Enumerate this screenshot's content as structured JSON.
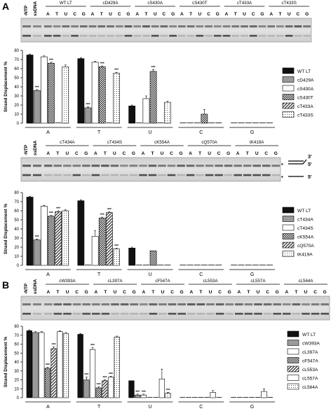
{
  "panel_labels": [
    "A",
    "B"
  ],
  "ylabel": "Strand Displacement %",
  "lanes_prefix": [
    "-NTP",
    "ssDNA"
  ],
  "nucleotides": [
    "A",
    "T",
    "U",
    "C",
    "G"
  ],
  "substrate_labels": {
    "top": "3'",
    "mid": "5'",
    "bottom": "5'",
    "star": "*"
  },
  "colors": {
    "black": "#111111",
    "grey": "#9a9a9a",
    "white": "#ffffff"
  },
  "chart_data": [
    {
      "type": "bar",
      "categories": [
        "A",
        "T",
        "U",
        "C",
        "G"
      ],
      "ylabel": "Strand Displacement %",
      "ylim": [
        0,
        80
      ],
      "yticks": [
        0,
        10,
        20,
        30,
        40,
        50,
        60,
        70,
        80
      ],
      "gel_groups": [
        "WT LT",
        "cD429A",
        "cS430A",
        "cS430T",
        "cT433A",
        "cT433S"
      ],
      "series": [
        {
          "name": "WT LT",
          "pattern": "black",
          "values": [
            75,
            71,
            19,
            0,
            0
          ],
          "err": [
            1,
            1,
            1,
            0,
            0
          ],
          "sig": [
            "",
            "",
            "",
            "",
            ""
          ]
        },
        {
          "name": "cD429A",
          "pattern": "grey",
          "values": [
            36,
            17,
            0,
            0,
            0
          ],
          "err": [
            1,
            1,
            0,
            0,
            0
          ],
          "sig": [
            "***",
            "***",
            "",
            "",
            ""
          ]
        },
        {
          "name": "cS430A",
          "pattern": "white",
          "values": [
            73,
            67,
            27,
            0,
            0
          ],
          "err": [
            1,
            1,
            3,
            0,
            0
          ],
          "sig": [
            "",
            "",
            "",
            "",
            ""
          ]
        },
        {
          "name": "cS430T",
          "pattern": "checker",
          "values": [
            66,
            62,
            57,
            10,
            0
          ],
          "err": [
            1,
            1,
            2,
            5,
            0
          ],
          "sig": [
            "***",
            "***",
            "***",
            "",
            ""
          ]
        },
        {
          "name": "cT433A",
          "pattern": "hatch",
          "values": [
            0,
            0,
            0,
            0,
            0
          ],
          "err": [
            0,
            0,
            0,
            0,
            0
          ],
          "sig": [
            "",
            "",
            "",
            "",
            ""
          ]
        },
        {
          "name": "cT433S",
          "pattern": "dots",
          "values": [
            62,
            55,
            23,
            0,
            0
          ],
          "err": [
            2,
            1,
            1,
            0,
            0
          ],
          "sig": [
            "",
            "***",
            "",
            "",
            ""
          ]
        }
      ]
    },
    {
      "type": "bar",
      "categories": [
        "A",
        "T",
        "U",
        "C",
        "G"
      ],
      "ylabel": "Strand Displacement %",
      "ylim": [
        0,
        80
      ],
      "yticks": [
        0,
        10,
        20,
        30,
        40,
        50,
        60,
        70,
        80
      ],
      "gel_groups": [
        "cT434A",
        "cT434S",
        "cK554A",
        "cQ570A",
        "tK419A"
      ],
      "series": [
        {
          "name": "WT LT",
          "pattern": "black",
          "values": [
            75,
            71,
            19,
            0,
            0
          ],
          "err": [
            1,
            1,
            1,
            0,
            0
          ],
          "sig": [
            "",
            "",
            "",
            "",
            ""
          ]
        },
        {
          "name": "cT434A",
          "pattern": "grey",
          "values": [
            28,
            0,
            0,
            0,
            0
          ],
          "err": [
            1,
            0,
            0,
            0,
            0
          ],
          "sig": [
            "***",
            "",
            "",
            "",
            ""
          ]
        },
        {
          "name": "cT434S",
          "pattern": "white",
          "values": [
            65,
            32,
            0,
            0,
            0
          ],
          "err": [
            1,
            6,
            0,
            0,
            0
          ],
          "sig": [
            "",
            "",
            "",
            "",
            ""
          ]
        },
        {
          "name": "cK554A",
          "pattern": "checker",
          "values": [
            54,
            52,
            16,
            0,
            0
          ],
          "err": [
            1,
            1,
            0,
            0,
            0
          ],
          "sig": [
            "***",
            "***",
            "",
            "",
            ""
          ]
        },
        {
          "name": "cQ570A",
          "pattern": "hatch",
          "values": [
            59,
            58,
            0,
            0,
            0
          ],
          "err": [
            1,
            1,
            0,
            0,
            0
          ],
          "sig": [
            "***",
            "***",
            "",
            "",
            ""
          ]
        },
        {
          "name": "tK419A",
          "pattern": "dots",
          "values": [
            60,
            18,
            0,
            0,
            0
          ],
          "err": [
            1,
            1,
            0,
            0,
            0
          ],
          "sig": [
            "",
            "***",
            "",
            "",
            ""
          ]
        }
      ]
    },
    {
      "type": "bar",
      "categories": [
        "A",
        "T",
        "U",
        "C",
        "G"
      ],
      "ylabel": "Strand Displacement %",
      "ylim": [
        0,
        80
      ],
      "yticks": [
        0,
        10,
        20,
        30,
        40,
        50,
        60,
        70,
        80
      ],
      "gel_groups": [
        "cW393A",
        "cL397A",
        "cF547A",
        "cL553A",
        "cL557A",
        "cL564A"
      ],
      "series": [
        {
          "name": "WT LT",
          "pattern": "black",
          "values": [
            75,
            71,
            19,
            0,
            0
          ],
          "err": [
            1,
            1,
            0,
            0,
            0
          ],
          "sig": [
            "",
            "",
            "",
            "",
            ""
          ]
        },
        {
          "name": "cW393A",
          "pattern": "grey",
          "values": [
            73,
            20,
            3,
            0,
            0
          ],
          "err": [
            1,
            3,
            1,
            0,
            0
          ],
          "sig": [
            "",
            "***",
            "***",
            "",
            ""
          ]
        },
        {
          "name": "cL397A",
          "pattern": "white",
          "values": [
            73,
            54,
            3,
            0,
            0
          ],
          "err": [
            1,
            2,
            1,
            0,
            0
          ],
          "sig": [
            "",
            "***",
            "***",
            "",
            ""
          ]
        },
        {
          "name": "cF547A",
          "pattern": "checker",
          "values": [
            33,
            11,
            0,
            0,
            0
          ],
          "err": [
            1,
            1,
            0,
            0,
            0
          ],
          "sig": [
            "***",
            "***",
            "",
            "",
            ""
          ]
        },
        {
          "name": "cL553A",
          "pattern": "hatch",
          "values": [
            55,
            19,
            0,
            0,
            0
          ],
          "err": [
            2,
            1,
            0,
            0,
            0
          ],
          "sig": [
            "***",
            "***",
            "",
            "",
            ""
          ]
        },
        {
          "name": "cL557A",
          "pattern": "white",
          "values": [
            74,
            23,
            21,
            6,
            7
          ],
          "err": [
            1,
            1,
            11,
            2,
            3
          ],
          "sig": [
            "",
            "***",
            "",
            "",
            ""
          ]
        },
        {
          "name": "cL564A",
          "pattern": "dots",
          "values": [
            72,
            68,
            5,
            0,
            0
          ],
          "err": [
            1,
            1,
            1,
            0,
            0
          ],
          "sig": [
            "",
            "",
            "***",
            "",
            ""
          ]
        }
      ]
    }
  ]
}
